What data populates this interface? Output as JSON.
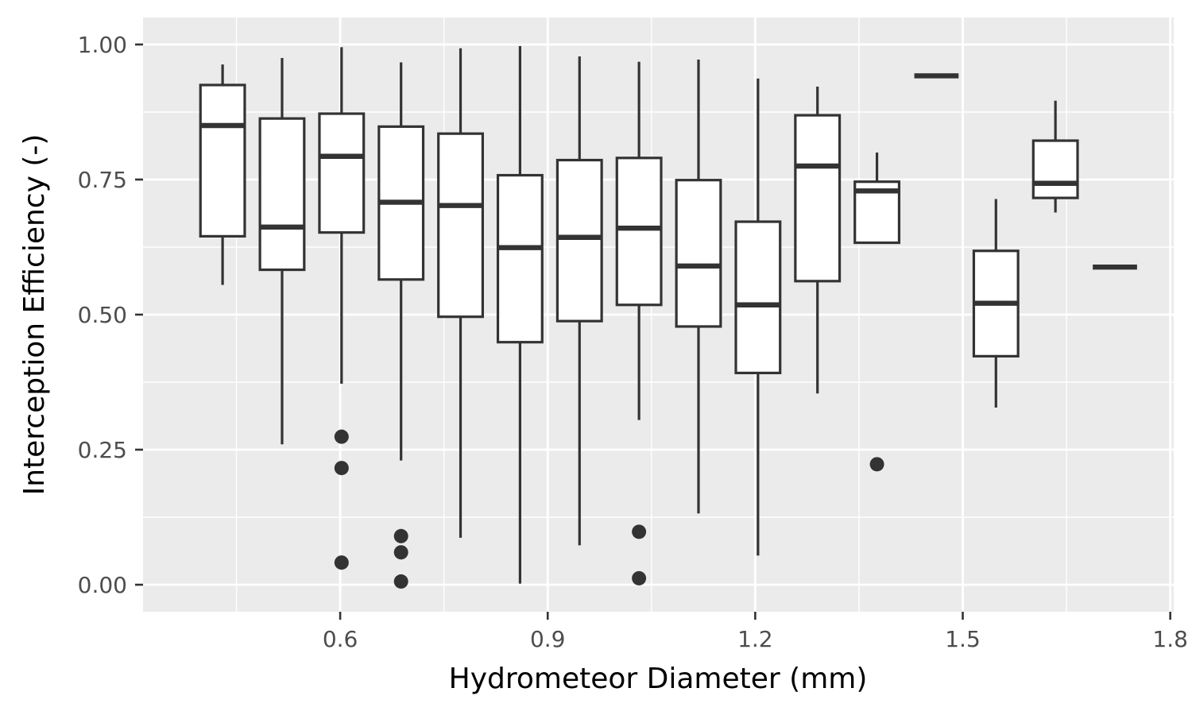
{
  "chart_data": {
    "type": "boxplot",
    "title": "",
    "xlabel": "Hydrometeor Diameter (mm)",
    "ylabel": "Interception Efficiency (-)",
    "xlim": [
      0.315,
      1.805
    ],
    "ylim": [
      -0.05,
      1.05
    ],
    "x_ticks": [
      0.6,
      0.9,
      1.2,
      1.5,
      1.8
    ],
    "x_tick_labels": [
      "0.6",
      "0.9",
      "1.2",
      "1.5",
      "1.8"
    ],
    "y_ticks": [
      0.0,
      0.25,
      0.5,
      0.75,
      1.0
    ],
    "y_tick_labels": [
      "0.00",
      "0.25",
      "0.50",
      "0.75",
      "1.00"
    ],
    "grid": true,
    "colors": {
      "panel": "#ebebeb",
      "grid": "#ffffff",
      "box_fill": "#ffffff",
      "line": "#333333"
    },
    "box_width": 0.064,
    "boxes": [
      {
        "x": 0.43,
        "min": 0.555,
        "q1": 0.645,
        "median": 0.85,
        "q3": 0.925,
        "max": 0.963,
        "outliers": []
      },
      {
        "x": 0.516,
        "min": 0.26,
        "q1": 0.583,
        "median": 0.662,
        "q3": 0.863,
        "max": 0.975,
        "outliers": []
      },
      {
        "x": 0.602,
        "min": 0.372,
        "q1": 0.652,
        "median": 0.793,
        "q3": 0.872,
        "max": 0.995,
        "outliers": [
          0.274,
          0.216,
          0.041
        ]
      },
      {
        "x": 0.688,
        "min": 0.23,
        "q1": 0.565,
        "median": 0.708,
        "q3": 0.848,
        "max": 0.967,
        "outliers": [
          0.09,
          0.06,
          0.006
        ]
      },
      {
        "x": 0.774,
        "min": 0.087,
        "q1": 0.496,
        "median": 0.702,
        "q3": 0.835,
        "max": 0.993,
        "outliers": []
      },
      {
        "x": 0.86,
        "min": 0.002,
        "q1": 0.449,
        "median": 0.624,
        "q3": 0.758,
        "max": 0.997,
        "outliers": []
      },
      {
        "x": 0.946,
        "min": 0.073,
        "q1": 0.488,
        "median": 0.643,
        "q3": 0.786,
        "max": 0.978,
        "outliers": []
      },
      {
        "x": 1.032,
        "min": 0.305,
        "q1": 0.518,
        "median": 0.66,
        "q3": 0.79,
        "max": 0.968,
        "outliers": [
          0.098,
          0.012
        ]
      },
      {
        "x": 1.118,
        "min": 0.132,
        "q1": 0.478,
        "median": 0.59,
        "q3": 0.749,
        "max": 0.972,
        "outliers": []
      },
      {
        "x": 1.204,
        "min": 0.054,
        "q1": 0.392,
        "median": 0.518,
        "q3": 0.672,
        "max": 0.937,
        "outliers": []
      },
      {
        "x": 1.29,
        "min": 0.354,
        "q1": 0.562,
        "median": 0.775,
        "q3": 0.869,
        "max": 0.922,
        "outliers": []
      },
      {
        "x": 1.376,
        "min": 0.633,
        "q1": 0.633,
        "median": 0.729,
        "q3": 0.746,
        "max": 0.8,
        "outliers": [
          0.223
        ]
      },
      {
        "x": 1.462,
        "min": 0.942,
        "q1": 0.942,
        "median": 0.942,
        "q3": 0.942,
        "max": 0.942,
        "outliers": []
      },
      {
        "x": 1.548,
        "min": 0.328,
        "q1": 0.423,
        "median": 0.521,
        "q3": 0.618,
        "max": 0.714,
        "outliers": []
      },
      {
        "x": 1.634,
        "min": 0.689,
        "q1": 0.716,
        "median": 0.743,
        "q3": 0.822,
        "max": 0.896,
        "outliers": []
      },
      {
        "x": 1.72,
        "min": 0.588,
        "q1": 0.588,
        "median": 0.588,
        "q3": 0.588,
        "max": 0.588,
        "outliers": []
      }
    ]
  }
}
